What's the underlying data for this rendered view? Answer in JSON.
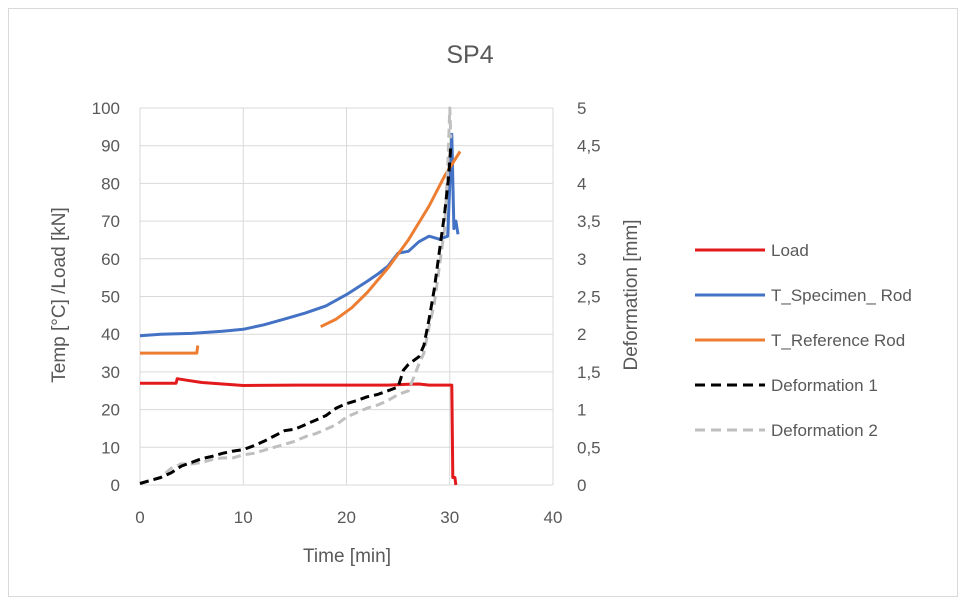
{
  "chart_data": {
    "type": "line",
    "title": "SP4",
    "xlabel": "Time [min]",
    "ylabel": "Temp [°C] /Load [kN]",
    "y2label": "Deformation [mm]",
    "xlim": [
      0,
      40
    ],
    "ylim": [
      0,
      100
    ],
    "y2lim": [
      0,
      5
    ],
    "x_ticks": [
      "0",
      "10",
      "20",
      "30",
      "40"
    ],
    "y_ticks": [
      "0",
      "10",
      "20",
      "30",
      "40",
      "50",
      "60",
      "70",
      "80",
      "90",
      "100"
    ],
    "y2_ticks": [
      "0",
      "0,5",
      "1",
      "1,5",
      "2",
      "2,5",
      "3",
      "3,5",
      "4",
      "4,5",
      "5"
    ],
    "grid": true,
    "legend_position": "right",
    "series": [
      {
        "name": "Load",
        "axis": "left",
        "color": "#e31a1c",
        "dash": "solid",
        "points": [
          [
            0,
            27
          ],
          [
            3.5,
            27
          ],
          [
            3.6,
            28.2
          ],
          [
            4.5,
            27.8
          ],
          [
            6,
            27.2
          ],
          [
            8,
            26.8
          ],
          [
            10,
            26.4
          ],
          [
            15,
            26.5
          ],
          [
            20,
            26.5
          ],
          [
            24,
            26.5
          ],
          [
            26,
            26.7
          ],
          [
            27,
            26.8
          ],
          [
            28,
            26.5
          ],
          [
            30.2,
            26.5
          ],
          [
            30.3,
            2
          ],
          [
            30.5,
            2
          ],
          [
            30.6,
            0
          ]
        ]
      },
      {
        "name": "T_Specimen_ Rod",
        "axis": "left",
        "color": "#4472c4",
        "dash": "solid",
        "points": [
          [
            0,
            39.6
          ],
          [
            2,
            40
          ],
          [
            5,
            40.2
          ],
          [
            8,
            40.8
          ],
          [
            10,
            41.3
          ],
          [
            12,
            42.5
          ],
          [
            14,
            44
          ],
          [
            16,
            45.6
          ],
          [
            18,
            47.5
          ],
          [
            20,
            50.5
          ],
          [
            22,
            54
          ],
          [
            23,
            55.9
          ],
          [
            24,
            58
          ],
          [
            25,
            61.5
          ],
          [
            26,
            62
          ],
          [
            27,
            64.5
          ],
          [
            28,
            66
          ],
          [
            29,
            65.2
          ],
          [
            29.8,
            66
          ],
          [
            30.2,
            93
          ],
          [
            30.4,
            68
          ],
          [
            30.6,
            70
          ],
          [
            30.8,
            66.5
          ]
        ]
      },
      {
        "name": "T_Reference Rod",
        "axis": "left",
        "color": "#ed7d31",
        "dash": "solid",
        "points": [
          [
            17.5,
            42
          ],
          [
            19,
            44
          ],
          [
            20.5,
            47
          ],
          [
            22,
            51
          ],
          [
            24,
            57.5
          ],
          [
            26,
            65
          ],
          [
            28,
            74
          ],
          [
            29.5,
            82
          ],
          [
            31,
            88.5
          ]
        ]
      },
      {
        "name": "T_Reference Rod (early)",
        "axis": "left",
        "color": "#ed7d31",
        "dash": "solid",
        "points": [
          [
            0,
            35
          ],
          [
            5.5,
            35
          ],
          [
            5.6,
            37
          ]
        ]
      },
      {
        "name": "Deformation 1",
        "axis": "right",
        "color": "#000000",
        "dash": "dashed",
        "points": [
          [
            0,
            0.02
          ],
          [
            1,
            0.06
          ],
          [
            2,
            0.1
          ],
          [
            3,
            0.16
          ],
          [
            4,
            0.25
          ],
          [
            5,
            0.3
          ],
          [
            6,
            0.35
          ],
          [
            7,
            0.38
          ],
          [
            8,
            0.42
          ],
          [
            9,
            0.45
          ],
          [
            10,
            0.47
          ],
          [
            11,
            0.52
          ],
          [
            12,
            0.58
          ],
          [
            13,
            0.65
          ],
          [
            14,
            0.72
          ],
          [
            15,
            0.74
          ],
          [
            16,
            0.8
          ],
          [
            17,
            0.86
          ],
          [
            18,
            0.92
          ],
          [
            19,
            1.02
          ],
          [
            20,
            1.08
          ],
          [
            21,
            1.12
          ],
          [
            22,
            1.17
          ],
          [
            23,
            1.2
          ],
          [
            24,
            1.25
          ],
          [
            25,
            1.3
          ],
          [
            25.5,
            1.52
          ],
          [
            26,
            1.6
          ],
          [
            27,
            1.7
          ],
          [
            27.5,
            1.85
          ],
          [
            28,
            2.2
          ],
          [
            28.5,
            2.6
          ],
          [
            29,
            3.1
          ],
          [
            29.5,
            3.6
          ],
          [
            29.9,
            4.1
          ],
          [
            30.1,
            4.5
          ]
        ]
      },
      {
        "name": "Deformation 2",
        "axis": "right",
        "color": "#bfbfbf",
        "dash": "dashed",
        "points": [
          [
            0,
            0.02
          ],
          [
            1,
            0.06
          ],
          [
            2,
            0.1
          ],
          [
            3,
            0.22
          ],
          [
            4,
            0.28
          ],
          [
            5,
            0.28
          ],
          [
            6,
            0.3
          ],
          [
            7,
            0.34
          ],
          [
            8,
            0.36
          ],
          [
            9,
            0.36
          ],
          [
            10,
            0.4
          ],
          [
            11,
            0.42
          ],
          [
            12,
            0.46
          ],
          [
            13,
            0.5
          ],
          [
            14,
            0.54
          ],
          [
            15,
            0.58
          ],
          [
            16,
            0.64
          ],
          [
            17,
            0.68
          ],
          [
            18,
            0.74
          ],
          [
            19,
            0.8
          ],
          [
            20,
            0.9
          ],
          [
            21,
            0.96
          ],
          [
            22,
            1.02
          ],
          [
            23,
            1.06
          ],
          [
            24,
            1.12
          ],
          [
            25,
            1.2
          ],
          [
            26,
            1.25
          ],
          [
            27,
            1.6
          ],
          [
            27.5,
            1.75
          ],
          [
            28,
            2.1
          ],
          [
            28.5,
            2.4
          ],
          [
            29,
            2.9
          ],
          [
            29.5,
            3.4
          ],
          [
            29.8,
            4.2
          ],
          [
            30,
            5.0
          ],
          [
            30.1,
            4.6
          ]
        ]
      }
    ],
    "legend": [
      {
        "label": "Load",
        "color": "#e31a1c",
        "dash": "solid"
      },
      {
        "label": "T_Specimen_ Rod",
        "color": "#4472c4",
        "dash": "solid"
      },
      {
        "label": "T_Reference Rod",
        "color": "#ed7d31",
        "dash": "solid"
      },
      {
        "label": "Deformation 1",
        "color": "#000000",
        "dash": "dashed"
      },
      {
        "label": "Deformation 2",
        "color": "#bfbfbf",
        "dash": "dashed"
      }
    ]
  }
}
